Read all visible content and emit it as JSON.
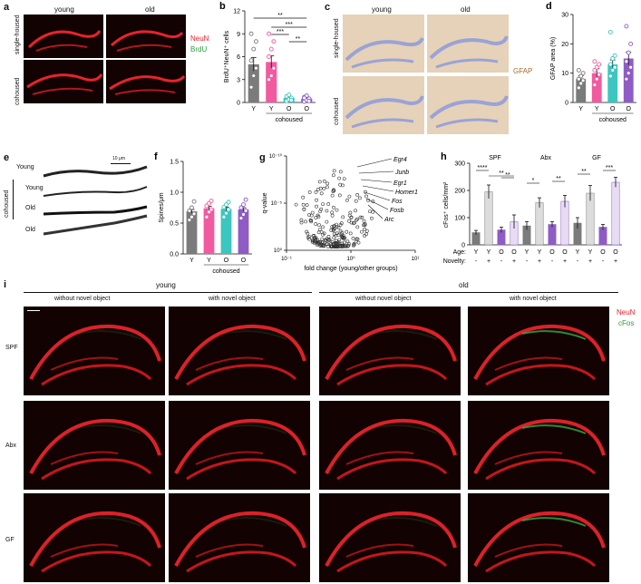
{
  "panels": {
    "a": {
      "letter": "a",
      "cols": [
        "young",
        "old"
      ],
      "rows": [
        "single-housed",
        "cohoused"
      ],
      "markers": [
        {
          "text": "NeuN",
          "color": "#e8232a"
        },
        {
          "text": "BrdU",
          "color": "#2a9d3a"
        }
      ]
    },
    "c": {
      "letter": "c",
      "cols": [
        "young",
        "old"
      ],
      "rows": [
        "single-housed",
        "cohoused"
      ],
      "stain": {
        "text": "GFAP",
        "color": "#a86b2a"
      }
    },
    "e": {
      "letter": "e",
      "scale_bar": "10 μm",
      "rows": [
        "Young",
        "Young",
        "Old",
        "Old"
      ],
      "bracket": "cohoused"
    },
    "g": {
      "letter": "g"
    },
    "i": {
      "letter": "i",
      "groups": [
        "young",
        "old"
      ],
      "conditions": [
        "without novel object",
        "with novel object",
        "without novel object",
        "with novel object"
      ],
      "rows": [
        "SPF",
        "Abx",
        "GF"
      ],
      "markers": [
        {
          "text": "NeuN",
          "color": "#e8232a"
        },
        {
          "text": "cFos",
          "color": "#2a9d3a"
        }
      ]
    }
  },
  "chart_data": [
    {
      "id": "b",
      "letter": "b",
      "type": "bar",
      "categories": [
        "Y",
        "Y",
        "O",
        "O"
      ],
      "colors": [
        "#7b7b7b",
        "#f25aa0",
        "#3cc6c0",
        "#8e5cc4"
      ],
      "values": [
        5.0,
        5.3,
        0.6,
        0.5
      ],
      "errors": [
        0.9,
        0.8,
        0.2,
        0.2
      ],
      "points": [
        [
          2.0,
          3.5,
          4.5,
          5.5,
          7.0,
          8.0,
          9.0
        ],
        [
          3.0,
          3.5,
          4.5,
          6.0,
          7.0,
          8.0,
          9.0
        ],
        [
          0.2,
          0.4,
          0.6,
          0.8,
          1.0,
          0.3
        ],
        [
          0.1,
          0.3,
          0.5,
          0.7,
          0.9,
          0.2,
          0.6
        ]
      ],
      "ylabel": "BrdU⁺NeuN⁺ cells",
      "ylim": [
        0,
        12
      ],
      "yticks": [
        "0",
        "3",
        "6",
        "9",
        "12"
      ],
      "group_label": "cohoused",
      "significance": [
        "**",
        "***",
        "***",
        "**"
      ]
    },
    {
      "id": "d",
      "letter": "d",
      "type": "bar",
      "categories": [
        "Y",
        "Y",
        "O",
        "O"
      ],
      "colors": [
        "#7b7b7b",
        "#f25aa0",
        "#3cc6c0",
        "#8e5cc4"
      ],
      "values": [
        8.0,
        10.0,
        13.0,
        15.0
      ],
      "errors": [
        1.2,
        1.5,
        1.5,
        2.2
      ],
      "points": [
        [
          5.0,
          6.5,
          7.5,
          8.0,
          9.0,
          10.0,
          11.0
        ],
        [
          6.0,
          8.0,
          9.5,
          11.0,
          12.0,
          13.0,
          14.0
        ],
        [
          9.0,
          11.0,
          12.0,
          13.0,
          15.0,
          16.0,
          24.0
        ],
        [
          8.0,
          10.0,
          12.0,
          14.0,
          17.0,
          20.0,
          26.0
        ]
      ],
      "ylabel": "GFAP area (%)",
      "ylim": [
        0,
        30
      ],
      "yticks": [
        "0",
        "10",
        "20",
        "30"
      ],
      "group_label": "cohoused"
    },
    {
      "id": "f",
      "letter": "f",
      "type": "bar",
      "categories": [
        "Y",
        "Y",
        "O",
        "O"
      ],
      "colors": [
        "#7b7b7b",
        "#f25aa0",
        "#3cc6c0",
        "#8e5cc4"
      ],
      "values": [
        0.69,
        0.74,
        0.73,
        0.72
      ],
      "errors": [
        0.03,
        0.03,
        0.03,
        0.03
      ],
      "points": [
        [
          0.55,
          0.6,
          0.65,
          0.7,
          0.75,
          0.85
        ],
        [
          0.6,
          0.68,
          0.72,
          0.78,
          0.82,
          0.86
        ],
        [
          0.6,
          0.66,
          0.72,
          0.76,
          0.8,
          0.84
        ],
        [
          0.58,
          0.64,
          0.7,
          0.75,
          0.8,
          0.88
        ]
      ],
      "ylabel": "Spines/μm",
      "ylim": [
        0,
        1.5
      ],
      "yticks": [
        "0.0",
        "0.5",
        "1.0",
        "1.5"
      ],
      "group_label": "cohoused"
    },
    {
      "id": "g",
      "letter": "g",
      "type": "scatter",
      "xlabel": "fold change (young/other groups)",
      "ylabel": "q-value",
      "xticks": [
        "10⁻¹",
        "10⁰",
        "10¹"
      ],
      "yticks": [
        "10⁰",
        "10⁻⁵",
        "10⁻¹⁰"
      ],
      "genes": [
        "Egr4",
        "Junb",
        "Egr1",
        "Homer1",
        "Fos",
        "Fosb",
        "Arc"
      ]
    },
    {
      "id": "h",
      "letter": "h",
      "type": "bar",
      "groups": [
        "SPF",
        "Abx",
        "GF"
      ],
      "categories": [
        "Y",
        "Y",
        "O",
        "O",
        "Y",
        "Y",
        "O",
        "O",
        "Y",
        "Y",
        "O",
        "O"
      ],
      "novelty": [
        "-",
        "+",
        "-",
        "+",
        "-",
        "+",
        "-",
        "+",
        "-",
        "+",
        "-",
        "+"
      ],
      "row_labels": [
        "Age:",
        "Novelty:"
      ],
      "colors": [
        "#7b7b7b",
        "#dcdcdc",
        "#8e5cc4",
        "#e7dcf3",
        "#7b7b7b",
        "#dcdcdc",
        "#8e5cc4",
        "#e7dcf3",
        "#7b7b7b",
        "#dcdcdc",
        "#8e5cc4",
        "#e7dcf3"
      ],
      "values": [
        45,
        195,
        55,
        85,
        70,
        155,
        75,
        160,
        80,
        190,
        65,
        230
      ],
      "errors": [
        8,
        25,
        10,
        25,
        15,
        18,
        10,
        22,
        20,
        28,
        10,
        18
      ],
      "ylabel": "cFos⁺ cells/mm²",
      "ylim": [
        0,
        300
      ],
      "yticks": [
        "0",
        "100",
        "200",
        "300"
      ],
      "significance": [
        "****",
        "**",
        "**",
        "*",
        "**",
        "**",
        "***"
      ]
    }
  ]
}
